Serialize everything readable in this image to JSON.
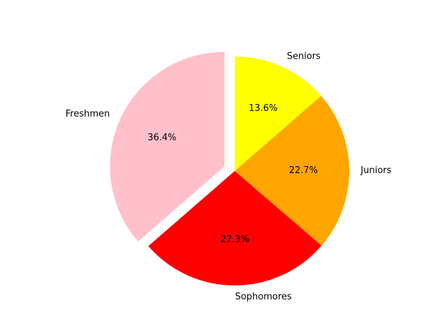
{
  "chart_data": {
    "type": "pie",
    "title": "",
    "categories": [
      "Freshmen",
      "Sophomores",
      "Juniors",
      "Seniors"
    ],
    "values": [
      36.4,
      27.3,
      22.7,
      13.6
    ],
    "value_labels": [
      "36.4%",
      "27.3%",
      "22.7%",
      "13.6%"
    ],
    "colors": [
      "#ffc0cb",
      "#ff0000",
      "#ffa500",
      "#ffff00"
    ],
    "exploded": [
      "Freshmen"
    ],
    "start_angle_deg": 90,
    "direction": "counterclockwise",
    "legend": "none"
  }
}
